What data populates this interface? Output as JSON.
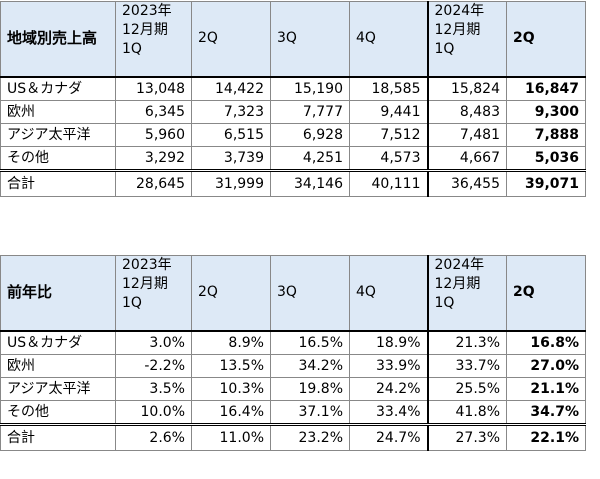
{
  "sales": {
    "title": "地域別売上高",
    "headers": [
      "2023年\n12月期\n1Q",
      "2Q",
      "3Q",
      "4Q",
      "2024年\n12月期\n1Q",
      "2Q"
    ],
    "rows": [
      {
        "label": "US＆カナダ",
        "values": [
          "13,048",
          "14,422",
          "15,190",
          "18,585",
          "15,824",
          "16,847"
        ]
      },
      {
        "label": "欧州",
        "values": [
          "6,345",
          "7,323",
          "7,777",
          "9,441",
          "8,483",
          "9,300"
        ]
      },
      {
        "label": "アジア太平洋",
        "values": [
          "5,960",
          "6,515",
          "6,928",
          "7,512",
          "7,481",
          "7,888"
        ]
      },
      {
        "label": "その他",
        "values": [
          "3,292",
          "3,739",
          "4,251",
          "4,573",
          "4,667",
          "5,036"
        ]
      }
    ],
    "total": {
      "label": "合計",
      "values": [
        "28,645",
        "31,999",
        "34,146",
        "40,111",
        "36,455",
        "39,071"
      ]
    }
  },
  "yoy": {
    "title": "前年比",
    "headers": [
      "2023年\n12月期\n1Q",
      "2Q",
      "3Q",
      "4Q",
      "2024年\n12月期\n1Q",
      "2Q"
    ],
    "rows": [
      {
        "label": "US＆カナダ",
        "values": [
          "3.0%",
          "8.9%",
          "16.5%",
          "18.9%",
          "21.3%",
          "16.8%"
        ]
      },
      {
        "label": "欧州",
        "values": [
          "-2.2%",
          "13.5%",
          "34.2%",
          "33.9%",
          "33.7%",
          "27.0%"
        ]
      },
      {
        "label": "アジア太平洋",
        "values": [
          "3.5%",
          "10.3%",
          "19.8%",
          "24.2%",
          "25.5%",
          "21.1%"
        ]
      },
      {
        "label": "その他",
        "values": [
          "10.0%",
          "16.4%",
          "37.1%",
          "33.4%",
          "41.8%",
          "34.7%"
        ]
      }
    ],
    "total": {
      "label": "合計",
      "values": [
        "2.6%",
        "11.0%",
        "23.2%",
        "24.7%",
        "27.3%",
        "22.1%"
      ]
    }
  }
}
